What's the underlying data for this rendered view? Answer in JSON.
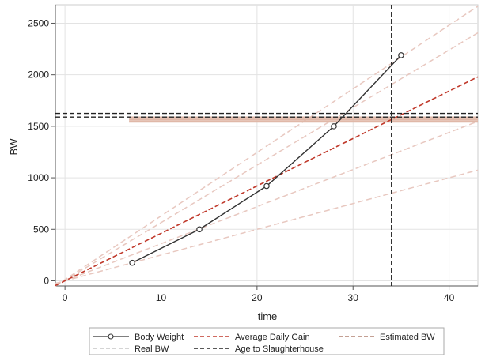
{
  "chart_data": {
    "type": "line",
    "xlabel": "time",
    "ylabel": "BW",
    "xlim": [
      -1,
      43
    ],
    "ylim": [
      -50,
      2680
    ],
    "xticks": [
      0,
      10,
      20,
      30,
      40
    ],
    "yticks": [
      0,
      500,
      1000,
      1500,
      2000,
      2500
    ],
    "grid": true,
    "legend_position": "bottom",
    "series": [
      {
        "name": "Body Weight",
        "kind": "line-markers",
        "color": "#333333",
        "x": [
          7,
          14,
          21,
          28,
          35
        ],
        "y": [
          175,
          500,
          920,
          1500,
          2190
        ]
      },
      {
        "name": "Average Daily Gain",
        "kind": "dashed-line",
        "color": "#c0392b",
        "x": [
          -1,
          43
        ],
        "y": [
          -46,
          1980
        ]
      },
      {
        "name": "Estimated BW",
        "kind": "horizontal-lines",
        "color": "#e0b8a8",
        "y": [
          1545,
          1565,
          1585
        ]
      },
      {
        "name": "Real BW",
        "kind": "dashed-lines",
        "color": "#e8c8c0",
        "lines": [
          {
            "x": [
              -1,
              43
            ],
            "y": [
              -25,
              1075
            ]
          },
          {
            "x": [
              -1,
              43
            ],
            "y": [
              -36,
              1548
            ]
          },
          {
            "x": [
              -1,
              43
            ],
            "y": [
              -56,
              2408
            ]
          },
          {
            "x": [
              -1,
              43
            ],
            "y": [
              -62,
              2666
            ]
          }
        ]
      },
      {
        "name": "Age to Slaughterhouse",
        "kind": "reference-lines",
        "color": "#222222",
        "vertical_x": [
          34
        ],
        "horizontal_y": [
          1590,
          1625
        ]
      }
    ],
    "legend": [
      {
        "label": "Body Weight"
      },
      {
        "label": "Average Daily Gain"
      },
      {
        "label": "Estimated BW"
      },
      {
        "label": "Real BW"
      },
      {
        "label": "Age to Slaughterhouse"
      }
    ]
  }
}
